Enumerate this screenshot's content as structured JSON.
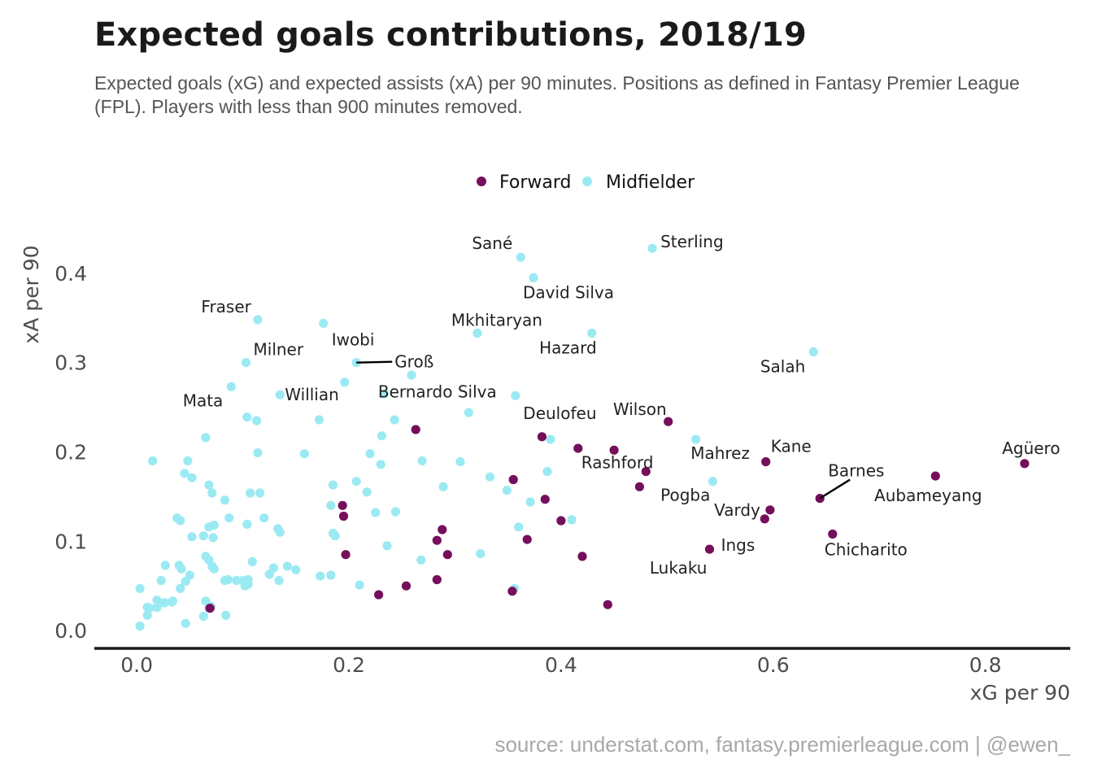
{
  "title": "Expected goals contributions, 2018/19",
  "subtitle": "Expected goals (xG) and expected assists (xA) per 90 minutes. Positions as defined in Fantasy Premier League (FPL). Players with less than 900 minutes removed.",
  "caption": "source: understat.com, fantasy.premierleague.com | @ewen_",
  "colors": {
    "Forward": "#750f5b",
    "Midfielder": "#9beaf3",
    "axis": "#1a1a1a"
  },
  "chart_data": {
    "type": "scatter",
    "xlabel": "xG per 90",
    "ylabel": "xA per 90",
    "xlim": [
      -0.04,
      0.88
    ],
    "ylim": [
      -0.02,
      0.44
    ],
    "xticks": [
      0.0,
      0.2,
      0.4,
      0.6,
      0.8
    ],
    "yticks": [
      0.0,
      0.1,
      0.2,
      0.3,
      0.4
    ],
    "xtick_labels": [
      "0.0",
      "0.2",
      "0.4",
      "0.6",
      "0.8"
    ],
    "ytick_labels": [
      "0.0",
      "0.1",
      "0.2",
      "0.3",
      "0.4"
    ],
    "grid": false,
    "legend": {
      "position": "top-center",
      "entries": [
        "Forward",
        "Midfielder"
      ]
    },
    "series": [
      {
        "name": "Midfielder",
        "points": [
          [
            0.362,
            0.418
          ],
          [
            0.374,
            0.395
          ],
          [
            0.486,
            0.428
          ],
          [
            0.321,
            0.333
          ],
          [
            0.429,
            0.333
          ],
          [
            0.114,
            0.348
          ],
          [
            0.176,
            0.344
          ],
          [
            0.103,
            0.3
          ],
          [
            0.207,
            0.3
          ],
          [
            0.259,
            0.286
          ],
          [
            0.196,
            0.278
          ],
          [
            0.638,
            0.312
          ],
          [
            0.357,
            0.263
          ],
          [
            0.233,
            0.265
          ],
          [
            0.089,
            0.273
          ],
          [
            0.135,
            0.264
          ],
          [
            0.313,
            0.244
          ],
          [
            0.104,
            0.239
          ],
          [
            0.113,
            0.235
          ],
          [
            0.172,
            0.236
          ],
          [
            0.243,
            0.236
          ],
          [
            0.065,
            0.216
          ],
          [
            0.231,
            0.218
          ],
          [
            0.39,
            0.214
          ],
          [
            0.527,
            0.214
          ],
          [
            0.114,
            0.199
          ],
          [
            0.158,
            0.198
          ],
          [
            0.22,
            0.198
          ],
          [
            0.015,
            0.19
          ],
          [
            0.048,
            0.19
          ],
          [
            0.269,
            0.19
          ],
          [
            0.305,
            0.189
          ],
          [
            0.23,
            0.186
          ],
          [
            0.045,
            0.176
          ],
          [
            0.052,
            0.171
          ],
          [
            0.387,
            0.178
          ],
          [
            0.333,
            0.172
          ],
          [
            0.543,
            0.167
          ],
          [
            0.068,
            0.163
          ],
          [
            0.185,
            0.163
          ],
          [
            0.207,
            0.167
          ],
          [
            0.289,
            0.161
          ],
          [
            0.071,
            0.154
          ],
          [
            0.107,
            0.154
          ],
          [
            0.116,
            0.154
          ],
          [
            0.217,
            0.155
          ],
          [
            0.349,
            0.157
          ],
          [
            0.083,
            0.146
          ],
          [
            0.183,
            0.14
          ],
          [
            0.371,
            0.144
          ],
          [
            0.038,
            0.126
          ],
          [
            0.041,
            0.123
          ],
          [
            0.073,
            0.118
          ],
          [
            0.068,
            0.116
          ],
          [
            0.087,
            0.126
          ],
          [
            0.12,
            0.126
          ],
          [
            0.104,
            0.119
          ],
          [
            0.244,
            0.133
          ],
          [
            0.225,
            0.132
          ],
          [
            0.41,
            0.124
          ],
          [
            0.36,
            0.116
          ],
          [
            0.052,
            0.105
          ],
          [
            0.072,
            0.104
          ],
          [
            0.063,
            0.106
          ],
          [
            0.133,
            0.114
          ],
          [
            0.135,
            0.11
          ],
          [
            0.185,
            0.109
          ],
          [
            0.187,
            0.106
          ],
          [
            0.236,
            0.095
          ],
          [
            0.027,
            0.073
          ],
          [
            0.04,
            0.073
          ],
          [
            0.042,
            0.069
          ],
          [
            0.05,
            0.062
          ],
          [
            0.065,
            0.083
          ],
          [
            0.068,
            0.079
          ],
          [
            0.071,
            0.072
          ],
          [
            0.073,
            0.069
          ],
          [
            0.083,
            0.056
          ],
          [
            0.086,
            0.057
          ],
          [
            0.109,
            0.077
          ],
          [
            0.129,
            0.07
          ],
          [
            0.142,
            0.072
          ],
          [
            0.15,
            0.068
          ],
          [
            0.125,
            0.063
          ],
          [
            0.094,
            0.056
          ],
          [
            0.1,
            0.056
          ],
          [
            0.105,
            0.057
          ],
          [
            0.102,
            0.05
          ],
          [
            0.105,
            0.052
          ],
          [
            0.134,
            0.056
          ],
          [
            0.173,
            0.061
          ],
          [
            0.183,
            0.062
          ],
          [
            0.21,
            0.051
          ],
          [
            0.268,
            0.079
          ],
          [
            0.324,
            0.086
          ],
          [
            0.023,
            0.056
          ],
          [
            0.046,
            0.055
          ],
          [
            0.041,
            0.047
          ],
          [
            0.003,
            0.047
          ],
          [
            0.012,
            0.025
          ],
          [
            0.019,
            0.026
          ],
          [
            0.019,
            0.034
          ],
          [
            0.026,
            0.031
          ],
          [
            0.033,
            0.032
          ],
          [
            0.034,
            0.033
          ],
          [
            0.065,
            0.033
          ],
          [
            0.068,
            0.025
          ],
          [
            0.07,
            0.027
          ],
          [
            0.063,
            0.016
          ],
          [
            0.084,
            0.017
          ],
          [
            0.01,
            0.026
          ],
          [
            0.01,
            0.017
          ],
          [
            0.003,
            0.005
          ],
          [
            0.046,
            0.008
          ],
          [
            0.356,
            0.047
          ]
        ]
      },
      {
        "name": "Forward",
        "points": [
          [
            0.837,
            0.187
          ],
          [
            0.753,
            0.173
          ],
          [
            0.656,
            0.108
          ],
          [
            0.644,
            0.148
          ],
          [
            0.597,
            0.135
          ],
          [
            0.592,
            0.125
          ],
          [
            0.593,
            0.189
          ],
          [
            0.54,
            0.091
          ],
          [
            0.501,
            0.234
          ],
          [
            0.48,
            0.178
          ],
          [
            0.474,
            0.161
          ],
          [
            0.45,
            0.202
          ],
          [
            0.416,
            0.204
          ],
          [
            0.382,
            0.217
          ],
          [
            0.42,
            0.083
          ],
          [
            0.4,
            0.123
          ],
          [
            0.385,
            0.147
          ],
          [
            0.368,
            0.102
          ],
          [
            0.355,
            0.169
          ],
          [
            0.354,
            0.044
          ],
          [
            0.444,
            0.029
          ],
          [
            0.263,
            0.225
          ],
          [
            0.288,
            0.113
          ],
          [
            0.283,
            0.101
          ],
          [
            0.293,
            0.085
          ],
          [
            0.283,
            0.057
          ],
          [
            0.254,
            0.05
          ],
          [
            0.228,
            0.04
          ],
          [
            0.194,
            0.14
          ],
          [
            0.195,
            0.128
          ],
          [
            0.197,
            0.085
          ],
          [
            0.069,
            0.025
          ]
        ]
      }
    ],
    "annotations": [
      {
        "text": "Sané",
        "x": 0.362,
        "y": 0.418
      },
      {
        "text": "Sterling",
        "x": 0.486,
        "y": 0.428
      },
      {
        "text": "David Silva",
        "x": 0.374,
        "y": 0.395
      },
      {
        "text": "Mkhitaryan",
        "x": 0.321,
        "y": 0.333
      },
      {
        "text": "Hazard",
        "x": 0.429,
        "y": 0.333
      },
      {
        "text": "Fraser",
        "x": 0.114,
        "y": 0.348
      },
      {
        "text": "Iwobi",
        "x": 0.176,
        "y": 0.344
      },
      {
        "text": "Milner",
        "x": 0.103,
        "y": 0.3
      },
      {
        "text": "Groß",
        "x": 0.207,
        "y": 0.3
      },
      {
        "text": "Salah",
        "x": 0.638,
        "y": 0.312
      },
      {
        "text": "Mata",
        "x": 0.089,
        "y": 0.273
      },
      {
        "text": "Willian",
        "x": 0.135,
        "y": 0.264
      },
      {
        "text": "Bernardo Silva",
        "x": 0.357,
        "y": 0.263
      },
      {
        "text": "Deulofeu",
        "x": 0.382,
        "y": 0.217
      },
      {
        "text": "Wilson",
        "x": 0.501,
        "y": 0.234
      },
      {
        "text": "Rashford",
        "x": 0.45,
        "y": 0.202
      },
      {
        "text": "Mahrez",
        "x": 0.527,
        "y": 0.214
      },
      {
        "text": "Kane",
        "x": 0.593,
        "y": 0.189
      },
      {
        "text": "Agüero",
        "x": 0.837,
        "y": 0.187
      },
      {
        "text": "Barnes",
        "x": 0.644,
        "y": 0.148
      },
      {
        "text": "Aubameyang",
        "x": 0.753,
        "y": 0.173
      },
      {
        "text": "Pogba",
        "x": 0.543,
        "y": 0.167
      },
      {
        "text": "Vardy",
        "x": 0.597,
        "y": 0.135
      },
      {
        "text": "Ings",
        "x": 0.592,
        "y": 0.125
      },
      {
        "text": "Chicharito",
        "x": 0.656,
        "y": 0.108
      },
      {
        "text": "Lukaku",
        "x": 0.54,
        "y": 0.091
      }
    ]
  }
}
